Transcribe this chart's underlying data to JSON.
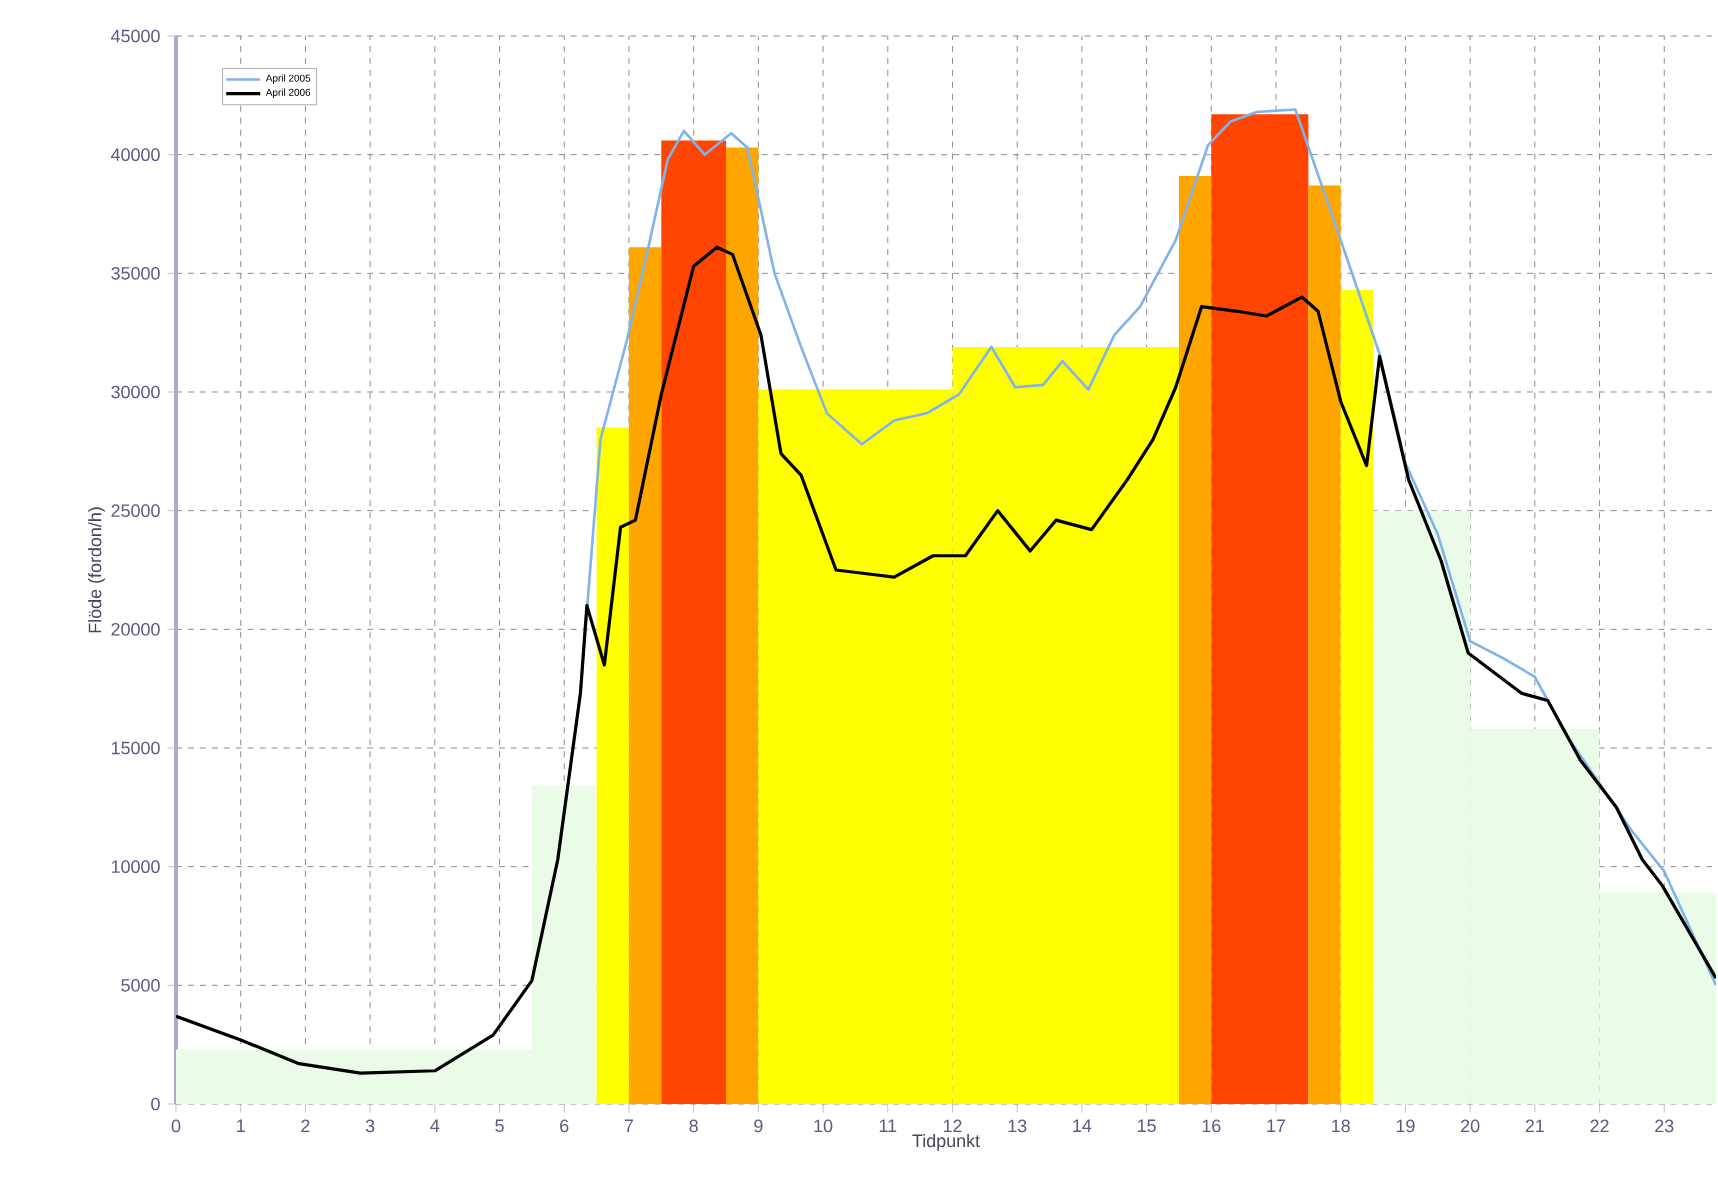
{
  "chart_data": {
    "type": "line",
    "xlabel": "Tidpunkt",
    "ylabel": "Flöde (fordon/h)",
    "xlim": [
      0,
      23.8
    ],
    "xticks": [
      0,
      1,
      2,
      3,
      4,
      5,
      6,
      7,
      8,
      9,
      10,
      11,
      12,
      13,
      14,
      15,
      16,
      17,
      18,
      19,
      20,
      21,
      22,
      23
    ],
    "ylim": [
      0,
      45000
    ],
    "yticks": [
      0,
      5000,
      10000,
      15000,
      20000,
      25000,
      30000,
      35000,
      40000,
      45000
    ],
    "grid": true,
    "legend": "top left",
    "marker": "none",
    "line_style": "solid",
    "series": [
      {
        "type": "histogram",
        "bins": [
          0,
          5.5,
          6.5,
          7,
          7.5,
          8.5,
          9,
          12,
          15.5,
          16,
          17.5,
          18,
          18.5,
          20,
          22,
          23.8
        ],
        "values": [
          2300,
          13400,
          28500,
          36100,
          40600,
          40300,
          30100,
          31900,
          39100,
          41700,
          38700,
          34300,
          25000,
          15800,
          8900
        ],
        "colors": [
          "#eafbe8",
          "#eafbe8",
          "#ffff00",
          "#ffa500",
          "#ff4500",
          "#ffa500",
          "#ffff00",
          "#ffff00",
          "#ffa500",
          "#ff4500",
          "#ffa500",
          "#ffff00",
          "#eafbe8",
          "#eafbe8",
          "#eafbe8"
        ]
      },
      {
        "name": "April 2005",
        "color": "#7fb3ea",
        "x": [
          5.9,
          6.25,
          6.56,
          6.97,
          7.3,
          7.6,
          7.85,
          8.17,
          8.58,
          8.83,
          9.25,
          9.66,
          10.06,
          10.6,
          11.1,
          11.6,
          12.1,
          12.6,
          12.97,
          13.4,
          13.7,
          14.1,
          14.5,
          14.9,
          15.45,
          15.8,
          15.95,
          16.3,
          16.7,
          17.3,
          18.0,
          18.6,
          19.0,
          19.5,
          20.0,
          20.5,
          21.0,
          21.5,
          22.0,
          22.5,
          23.0,
          23.8
        ],
        "values": [
          10300,
          17300,
          28000,
          32200,
          36100,
          39800,
          41000,
          40000,
          40900,
          40300,
          35000,
          31900,
          29100,
          27800,
          28800,
          29100,
          29900,
          31900,
          30200,
          30300,
          31300,
          30100,
          32400,
          33600,
          36400,
          39200,
          40400,
          41400,
          41800,
          41900,
          36400,
          31600,
          27000,
          24000,
          19500,
          18800,
          18000,
          15500,
          13500,
          11500,
          9800,
          5000
        ]
      },
      {
        "name": "April 2006",
        "color": "#000000",
        "x": [
          0,
          1.0,
          1.9,
          2.85,
          4.0,
          4.9,
          5.5,
          5.9,
          6.25,
          6.35,
          6.62,
          6.87,
          7.1,
          7.5,
          8.0,
          8.36,
          8.6,
          9.04,
          9.35,
          9.66,
          10.2,
          10.8,
          11.1,
          11.7,
          12.2,
          12.7,
          13.2,
          13.6,
          14.15,
          14.7,
          15.1,
          15.45,
          15.85,
          16.4,
          16.85,
          17.4,
          17.65,
          18.0,
          18.4,
          18.6,
          19.05,
          19.55,
          19.97,
          20.8,
          21.2,
          21.7,
          22.26,
          22.66,
          22.97,
          23.8
        ],
        "values": [
          3700,
          2700,
          1700,
          1300,
          1400,
          2900,
          5200,
          10300,
          17300,
          21000,
          18500,
          24300,
          24600,
          29900,
          35300,
          36100,
          35800,
          32400,
          27400,
          26500,
          22500,
          22300,
          22200,
          23100,
          23100,
          25000,
          23300,
          24600,
          24200,
          26300,
          28000,
          30200,
          33600,
          33400,
          33200,
          34000,
          33400,
          29600,
          26900,
          31500,
          26300,
          22900,
          19000,
          17300,
          17000,
          14500,
          12500,
          10300,
          9200,
          5300
        ]
      }
    ]
  }
}
